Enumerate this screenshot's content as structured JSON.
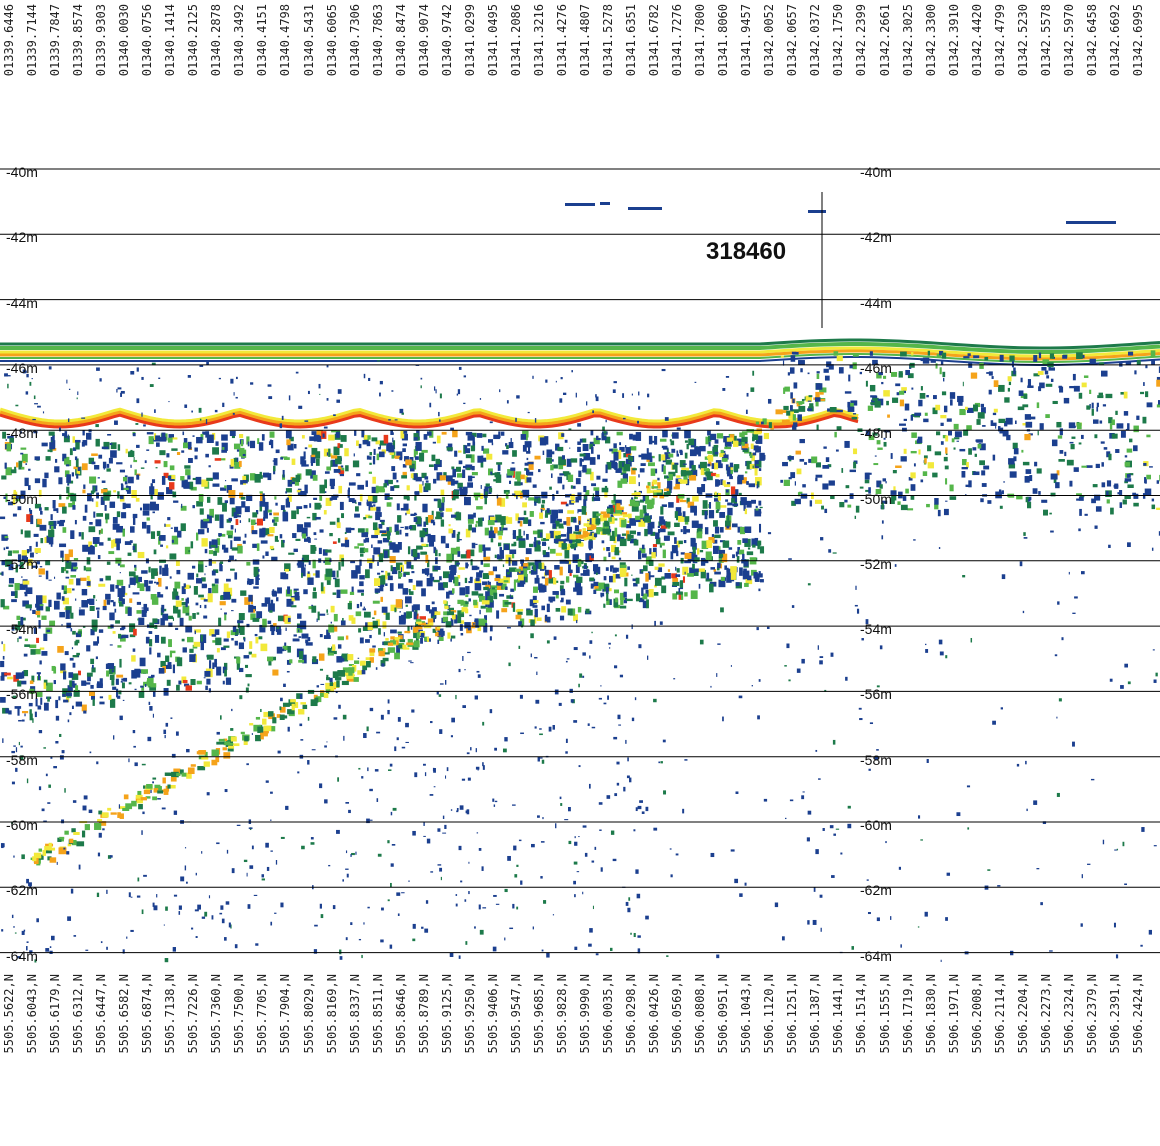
{
  "top_coords": [
    "01339.6446",
    "01339.7144",
    "01339.7847",
    "01339.8574",
    "01339.9303",
    "01340.0030",
    "01340.0756",
    "01340.1414",
    "01340.2125",
    "01340.2878",
    "01340.3492",
    "01340.4151",
    "01340.4798",
    "01340.5431",
    "01340.6065",
    "01340.7306",
    "01340.7863",
    "01340.8474",
    "01340.9074",
    "01340.9742",
    "01341.0299",
    "01341.0495",
    "01341.2086",
    "01341.3216",
    "01341.4276",
    "01341.4807",
    "01341.5278",
    "01341.6351",
    "01341.6782",
    "01341.7276",
    "01341.7800",
    "01341.8060",
    "01341.9457",
    "01342.0052",
    "01342.0657",
    "01342.0372",
    "01342.1750",
    "01342.2399",
    "01342.2661",
    "01342.3025",
    "01342.3300",
    "01342.3910",
    "01342.4420",
    "01342.4799",
    "01342.5230",
    "01342.5578",
    "01342.5970",
    "01342.6458",
    "01342.6692",
    "01342.6995"
  ],
  "bottom_coords": [
    "5505.5622",
    "5505.6043",
    "5505.6179",
    "5505.6312",
    "5505.6447",
    "5505.6582",
    "5505.6874",
    "5505.7138",
    "5505.7226",
    "5505.7360",
    "5505.7500",
    "5505.7705",
    "5505.7904",
    "5505.8029",
    "5505.8169",
    "5505.8337",
    "5505.8511",
    "5505.8646",
    "5505.8789",
    "5505.9125",
    "5505.9250",
    "5505.9406",
    "5505.9547",
    "5505.9685",
    "5505.9828",
    "5505.9990",
    "5506.0035",
    "5506.0298",
    "5506.0426",
    "5506.0569",
    "5506.0808",
    "5506.0951",
    "5506.1043",
    "5506.1120",
    "5506.1251",
    "5506.1387",
    "5506.1441",
    "5506.1514",
    "5506.1555",
    "5506.1719",
    "5506.1830",
    "5506.1971",
    "5506.2008",
    "5506.2114",
    "5506.2204",
    "5506.2273",
    "5506.2324",
    "5506.2379",
    "5506.2391",
    "5506.2424"
  ],
  "bottom_suffix": "N",
  "depth_labels": [
    "-40m",
    "-42m",
    "-44m",
    "-46m",
    "-48m",
    "-50m",
    "-52m",
    "-54m",
    "-56m",
    "-58m",
    "-60m",
    "-62m",
    "-64m"
  ],
  "ping_label": "318460",
  "colors": {
    "strong": "#e8391b",
    "medium_high": "#f5a31a",
    "medium": "#f2e93a",
    "low": "#55b64a",
    "weak": "#1d7a4a",
    "faint": "#1b3f8f",
    "gridline": "#000000"
  }
}
